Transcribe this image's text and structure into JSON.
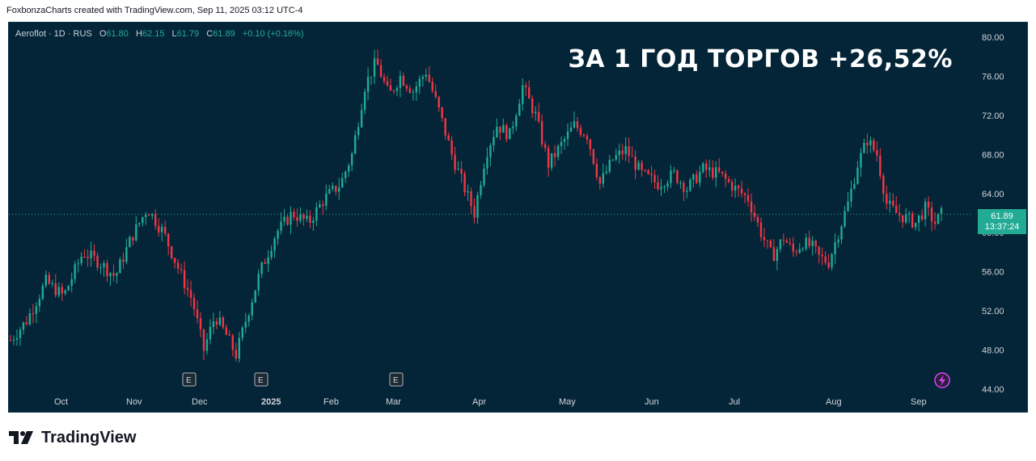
{
  "caption": "FoxbonzaCharts created with TradingView.com, Sep 11, 2025 03:12 UTC-4",
  "legend": {
    "symbol": "Aeroflot · 1D · RUS",
    "o_label": "O",
    "o_value": "61.80",
    "h_label": "H",
    "h_value": "62.15",
    "l_label": "L",
    "l_value": "61.79",
    "c_label": "C",
    "c_value": "61.89",
    "change": "+0.10 (+0.16%)"
  },
  "headline": "ЗА 1 ГОД ТОРГОВ +26,52%",
  "price_badge": {
    "price": "61.89",
    "countdown": "13:37:24"
  },
  "brand": "TradingView",
  "colors": {
    "background": "#042537",
    "up": "#22ab94",
    "down": "#f23645",
    "text": "#d1d4dc"
  },
  "chart_data": {
    "type": "candlestick",
    "ylim": [
      43,
      81
    ],
    "y_ticks": [
      "80.00",
      "76.00",
      "72.00",
      "68.00",
      "64.00",
      "60.00",
      "56.00",
      "52.00",
      "48.00",
      "44.00"
    ],
    "x_ticks": [
      "Oct",
      "Nov",
      "Dec",
      "2025",
      "Feb",
      "Mar",
      "Apr",
      "May",
      "Jun",
      "Jul",
      "Aug",
      "Sep"
    ],
    "last_price": 61.89,
    "earnings_markers": [
      "E",
      "E",
      "E"
    ],
    "anchors": [
      [
        0,
        49
      ],
      [
        10,
        51
      ],
      [
        22,
        55
      ],
      [
        33,
        53.5
      ],
      [
        45,
        58
      ],
      [
        55,
        57
      ],
      [
        65,
        55.5
      ],
      [
        75,
        59.5
      ],
      [
        85,
        62.5
      ],
      [
        95,
        60
      ],
      [
        105,
        56
      ],
      [
        113,
        53
      ],
      [
        120,
        48
      ],
      [
        127,
        51.5
      ],
      [
        134,
        49.5
      ],
      [
        140,
        47.5
      ],
      [
        146,
        51
      ],
      [
        155,
        56
      ],
      [
        165,
        60
      ],
      [
        175,
        62
      ],
      [
        185,
        61
      ],
      [
        195,
        63.5
      ],
      [
        205,
        65
      ],
      [
        212,
        68
      ],
      [
        220,
        75
      ],
      [
        227,
        77.5
      ],
      [
        235,
        74
      ],
      [
        242,
        76
      ],
      [
        250,
        74.5
      ],
      [
        258,
        76.5
      ],
      [
        266,
        72.5
      ],
      [
        274,
        68
      ],
      [
        282,
        64.5
      ],
      [
        288,
        62
      ],
      [
        295,
        68
      ],
      [
        302,
        71
      ],
      [
        310,
        70
      ],
      [
        318,
        75
      ],
      [
        326,
        72
      ],
      [
        334,
        67
      ],
      [
        342,
        69
      ],
      [
        350,
        71
      ],
      [
        358,
        70
      ],
      [
        366,
        65
      ],
      [
        374,
        67.5
      ],
      [
        382,
        68.5
      ],
      [
        392,
        66
      ],
      [
        402,
        65
      ],
      [
        412,
        66
      ],
      [
        420,
        64.5
      ],
      [
        430,
        66.5
      ],
      [
        440,
        66
      ],
      [
        450,
        64.5
      ],
      [
        458,
        63.5
      ],
      [
        466,
        60
      ],
      [
        473,
        57.5
      ],
      [
        480,
        59.5
      ],
      [
        486,
        58
      ],
      [
        492,
        59
      ],
      [
        498,
        58.5
      ],
      [
        502,
        57.5
      ],
      [
        508,
        57
      ],
      [
        514,
        60
      ],
      [
        520,
        63
      ],
      [
        526,
        67
      ],
      [
        532,
        69.5
      ],
      [
        538,
        68
      ],
      [
        544,
        63
      ],
      [
        550,
        62
      ],
      [
        556,
        61.5
      ],
      [
        562,
        61
      ],
      [
        568,
        62.5
      ],
      [
        574,
        61
      ],
      [
        578,
        61.9
      ]
    ]
  }
}
